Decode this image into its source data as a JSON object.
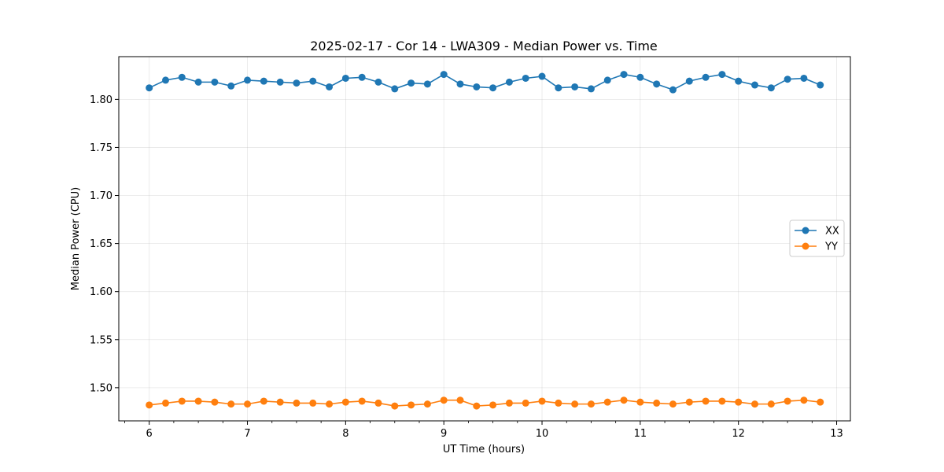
{
  "chart_data": {
    "type": "line",
    "title": "2025-02-17 - Cor 14 - LWA309 - Median Power vs. Time",
    "xlabel": "UT Time (hours)",
    "ylabel": "Median Power (CPU)",
    "xlim": [
      5.69,
      13.14
    ],
    "ylim": [
      1.4655,
      1.8445
    ],
    "x_ticks": [
      6,
      7,
      8,
      9,
      10,
      11,
      12,
      13
    ],
    "x_minor_tick_step": 0.25,
    "y_ticks": [
      1.5,
      1.55,
      1.6,
      1.65,
      1.7,
      1.75,
      1.8
    ],
    "y_tick_labels": [
      "1.50",
      "1.55",
      "1.60",
      "1.65",
      "1.70",
      "1.75",
      "1.80"
    ],
    "grid": true,
    "legend_position": "center-right",
    "x": [
      6.0,
      6.1667,
      6.3333,
      6.5,
      6.6667,
      6.8333,
      7.0,
      7.1667,
      7.3333,
      7.5,
      7.6667,
      7.8333,
      8.0,
      8.1667,
      8.3333,
      8.5,
      8.6667,
      8.8333,
      9.0,
      9.1667,
      9.3333,
      9.5,
      9.6667,
      9.8333,
      10.0,
      10.1667,
      10.3333,
      10.5,
      10.6667,
      10.8333,
      11.0,
      11.1667,
      11.3333,
      11.5,
      11.6667,
      11.8333,
      12.0,
      12.1667,
      12.3333,
      12.5,
      12.6667,
      12.8333
    ],
    "series": [
      {
        "name": "XX",
        "color": "#1f77b4",
        "values": [
          1.812,
          1.82,
          1.823,
          1.818,
          1.818,
          1.814,
          1.82,
          1.819,
          1.818,
          1.817,
          1.819,
          1.813,
          1.822,
          1.823,
          1.818,
          1.811,
          1.817,
          1.816,
          1.826,
          1.816,
          1.813,
          1.812,
          1.818,
          1.822,
          1.824,
          1.812,
          1.813,
          1.811,
          1.82,
          1.826,
          1.823,
          1.816,
          1.81,
          1.819,
          1.823,
          1.826,
          1.819,
          1.815,
          1.812,
          1.821,
          1.822,
          1.815
        ]
      },
      {
        "name": "YY",
        "color": "#ff7f0e",
        "values": [
          1.482,
          1.484,
          1.486,
          1.486,
          1.485,
          1.483,
          1.483,
          1.486,
          1.485,
          1.484,
          1.484,
          1.483,
          1.485,
          1.486,
          1.484,
          1.481,
          1.482,
          1.483,
          1.487,
          1.487,
          1.481,
          1.482,
          1.484,
          1.484,
          1.486,
          1.484,
          1.483,
          1.483,
          1.485,
          1.487,
          1.485,
          1.484,
          1.483,
          1.485,
          1.486,
          1.486,
          1.485,
          1.483,
          1.483,
          1.486,
          1.487,
          1.485
        ]
      }
    ]
  }
}
